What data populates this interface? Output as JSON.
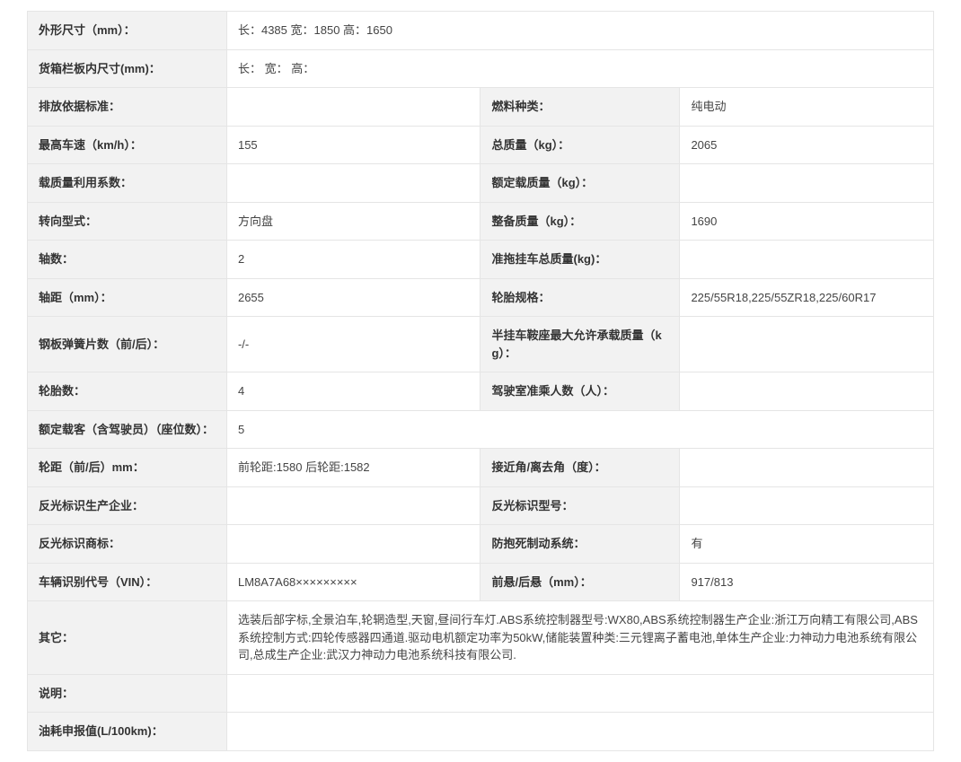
{
  "rows": [
    {
      "type": "full",
      "label": "外形尺寸（mm）：",
      "value": "长：4385 宽：1850 高：1650"
    },
    {
      "type": "full",
      "label": "货箱栏板内尺寸(mm)：",
      "value": "长： 宽： 高："
    },
    {
      "type": "pair",
      "l1": "排放依据标准：",
      "v1": "",
      "l2": "燃料种类：",
      "v2": "纯电动"
    },
    {
      "type": "pair",
      "l1": "最高车速（km/h）：",
      "v1": "155",
      "l2": "总质量（kg）：",
      "v2": "2065"
    },
    {
      "type": "pair",
      "l1": "载质量利用系数：",
      "v1": "",
      "l2": "额定载质量（kg）：",
      "v2": ""
    },
    {
      "type": "pair",
      "l1": "转向型式：",
      "v1": "方向盘",
      "l2": "整备质量（kg）：",
      "v2": "1690"
    },
    {
      "type": "pair",
      "l1": "轴数：",
      "v1": "2",
      "l2": "准拖挂车总质量(kg)：",
      "v2": ""
    },
    {
      "type": "pair",
      "l1": "轴距（mm）：",
      "v1": "2655",
      "l2": "轮胎规格：",
      "v2": "225/55R18,225/55ZR18,225/60R17"
    },
    {
      "type": "pair",
      "l1": "钢板弹簧片数（前/后）：",
      "v1": "-/-",
      "l2": "半挂车鞍座最大允许承载质量（kg）：",
      "v2": ""
    },
    {
      "type": "pair",
      "l1": "轮胎数：",
      "v1": "4",
      "l2": "驾驶室准乘人数（人）：",
      "v2": ""
    },
    {
      "type": "full",
      "label": "额定载客（含驾驶员）（座位数）：",
      "value": "5"
    },
    {
      "type": "pair",
      "l1": "轮距（前/后）mm：",
      "v1": "前轮距:1580 后轮距:1582",
      "l2": "接近角/离去角（度）：",
      "v2": ""
    },
    {
      "type": "pair",
      "l1": "反光标识生产企业：",
      "v1": "",
      "l2": "反光标识型号：",
      "v2": ""
    },
    {
      "type": "pair",
      "l1": "反光标识商标：",
      "v1": "",
      "l2": "防抱死制动系统：",
      "v2": "有"
    },
    {
      "type": "pair",
      "l1": "车辆识别代号（VIN）：",
      "v1": "LM8A7A68×××××××××",
      "l2": "前悬/后悬（mm）：",
      "v2": "917/813"
    },
    {
      "type": "full",
      "label": "其它：",
      "value": "选装后部字标,全景泊车,轮辋造型,天窗,昼间行车灯.ABS系统控制器型号:WX80,ABS系统控制器生产企业:浙江万向精工有限公司,ABS系统控制方式:四轮传感器四通道.驱动电机额定功率为50kW,储能装置种类:三元锂离子蓄电池,单体生产企业:力神动力电池系统有限公司,总成生产企业:武汉力神动力电池系统科技有限公司."
    },
    {
      "type": "full",
      "label": "说明：",
      "value": ""
    },
    {
      "type": "full",
      "label": "油耗申报值(L/100km)：",
      "value": ""
    }
  ]
}
